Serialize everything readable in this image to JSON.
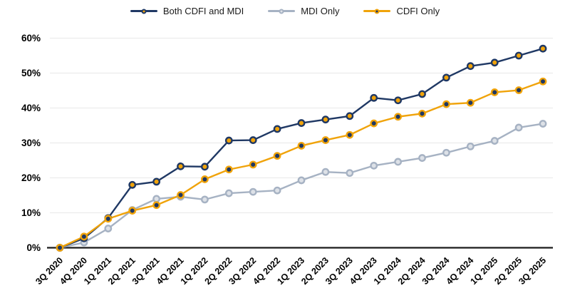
{
  "chart_data": {
    "type": "line",
    "title": "",
    "xlabel": "",
    "ylabel": "",
    "categories": [
      "3Q 2020",
      "4Q 2020",
      "1Q 2021",
      "2Q 2021",
      "3Q 2021",
      "4Q 2021",
      "1Q 2022",
      "2Q 2022",
      "3Q 2022",
      "4Q 2022",
      "1Q 2023",
      "2Q 2023",
      "3Q 2023",
      "4Q 2023",
      "1Q 2024",
      "2Q 2024",
      "3Q 2024",
      "4Q 2024",
      "1Q 2025",
      "2Q 2025",
      "3Q 2025"
    ],
    "series": [
      {
        "name": "Both CDFI and MDI",
        "values": [
          0,
          2.7,
          8.5,
          18.0,
          18.9,
          23.3,
          23.2,
          30.7,
          30.8,
          34.0,
          35.7,
          36.7,
          37.7,
          42.9,
          42.2,
          44.0,
          48.7,
          52.0,
          53.0,
          55.0,
          57.0
        ],
        "line_color": "#1f3864",
        "marker_fill": "#f0a30a",
        "marker_stroke": "#1f3864"
      },
      {
        "name": "MDI Only",
        "values": [
          0,
          1.5,
          5.5,
          10.8,
          14.0,
          14.6,
          13.8,
          15.6,
          16.0,
          16.4,
          19.3,
          21.7,
          21.4,
          23.5,
          24.6,
          25.7,
          27.2,
          29.0,
          30.6,
          34.4,
          35.5
        ],
        "line_color": "#a6b2c3",
        "marker_fill": "#dde1e7",
        "marker_stroke": "#a6b2c3"
      },
      {
        "name": "CDFI Only",
        "values": [
          0,
          3.2,
          8.3,
          10.6,
          12.2,
          15.1,
          19.6,
          22.4,
          23.8,
          26.3,
          29.2,
          30.8,
          32.3,
          35.6,
          37.5,
          38.4,
          41.1,
          41.5,
          44.5,
          45.1,
          47.6
        ],
        "line_color": "#f0a30a",
        "marker_fill": "#1f3864",
        "marker_stroke": "#f0a30a"
      }
    ],
    "ylim": [
      0,
      60
    ],
    "y_ticks": [
      "0%",
      "10%",
      "20%",
      "30%",
      "40%",
      "50%",
      "60%"
    ],
    "grid": true,
    "legend_position": "top"
  },
  "colors": {
    "axis_line": "#1a1a1a",
    "gridline": "#e8e8e8",
    "tick_text": "#000000",
    "background": "#ffffff"
  }
}
